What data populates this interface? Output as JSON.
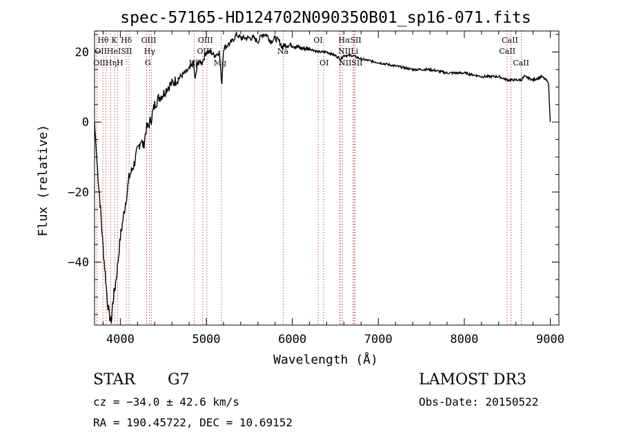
{
  "chart_data": {
    "type": "line",
    "title": "spec-57165-HD124702N090350B01_sp16-071.fits",
    "xlabel": "Wavelength (Å)",
    "ylabel": "Flux (relative)",
    "xlim": [
      3700,
      9100
    ],
    "ylim": [
      -58,
      26
    ],
    "xticks": [
      4000,
      5000,
      6000,
      7000,
      8000,
      9000
    ],
    "yticks": [
      -40,
      -20,
      0,
      20
    ],
    "ytick_labels": [
      "−40",
      "−20",
      "0",
      "20"
    ],
    "series": [
      {
        "name": "spectrum",
        "x": [
          3700,
          3730,
          3770,
          3800,
          3830,
          3850,
          3870,
          3890,
          3900,
          3910,
          3920,
          3940,
          3960,
          3980,
          4000,
          4030,
          4060,
          4080,
          4100,
          4130,
          4160,
          4200,
          4240,
          4270,
          4300,
          4330,
          4360,
          4400,
          4450,
          4500,
          4550,
          4600,
          4650,
          4700,
          4750,
          4800,
          4850,
          4870,
          4900,
          4950,
          5000,
          5050,
          5100,
          5150,
          5180,
          5200,
          5250,
          5300,
          5350,
          5400,
          5450,
          5500,
          5550,
          5600,
          5650,
          5700,
          5750,
          5800,
          5850,
          5890,
          5900,
          5950,
          6000,
          6100,
          6200,
          6300,
          6400,
          6500,
          6560,
          6600,
          6700,
          6800,
          7000,
          7200,
          7400,
          7600,
          7800,
          8000,
          8200,
          8400,
          8500,
          8540,
          8600,
          8660,
          8700,
          8800,
          8900,
          8950,
          8980,
          8990,
          9000
        ],
        "y": [
          0,
          -12,
          -25,
          -36,
          -45,
          -51,
          -55,
          -57,
          -56,
          -52,
          -50,
          -47,
          -43,
          -38,
          -33,
          -28,
          -23,
          -20,
          -16,
          -14,
          -12,
          -8,
          -5,
          -7,
          -2,
          -1,
          1,
          5,
          7,
          8,
          10,
          11,
          12,
          13,
          14,
          15,
          17,
          12,
          17,
          17,
          20,
          20,
          19,
          20,
          11,
          21,
          22,
          23,
          25,
          24,
          24,
          24,
          24,
          23,
          25,
          25,
          23,
          24,
          23,
          21,
          22,
          22,
          22,
          21,
          21,
          20,
          20,
          19,
          18,
          19,
          19,
          18,
          17,
          16,
          15,
          15,
          14,
          14,
          13,
          13,
          12,
          12,
          12,
          12,
          13,
          12,
          13,
          12,
          11,
          5,
          0
        ]
      }
    ],
    "lines": [
      {
        "name": "Hθ",
        "wavelength": 3797
      },
      {
        "name": "OII",
        "wavelength": 3727
      },
      {
        "name": "Hη",
        "wavelength": 3835
      },
      {
        "name": "HeI",
        "wavelength": 3889
      },
      {
        "name": "K",
        "wavelength": 3934
      },
      {
        "name": "H",
        "wavelength": 3968
      },
      {
        "name": "SII",
        "wavelength": 4070
      },
      {
        "name": "Hδ",
        "wavelength": 4102
      },
      {
        "name": "G",
        "wavelength": 4305
      },
      {
        "name": "Hγ",
        "wavelength": 4340
      },
      {
        "name": "OIII",
        "wavelength": 4363
      },
      {
        "name": "Hβ",
        "wavelength": 4861
      },
      {
        "name": "OIII",
        "wavelength": 4959
      },
      {
        "name": "OIII",
        "wavelength": 5007
      },
      {
        "name": "Mg",
        "wavelength": 5175
      },
      {
        "name": "Na",
        "wavelength": 5893
      },
      {
        "name": "OI",
        "wavelength": 6300
      },
      {
        "name": "OI",
        "wavelength": 6364
      },
      {
        "name": "NII",
        "wavelength": 6548
      },
      {
        "name": "Hα",
        "wavelength": 6563
      },
      {
        "name": "NII",
        "wavelength": 6584
      },
      {
        "name": "SII",
        "wavelength": 6717
      },
      {
        "name": "SII",
        "wavelength": 6731
      },
      {
        "name": "Li",
        "wavelength": 6708
      },
      {
        "name": "CaII",
        "wavelength": 8498
      },
      {
        "name": "CaII",
        "wavelength": 8542
      },
      {
        "name": "CaII",
        "wavelength": 8662
      }
    ],
    "line_labels": [
      {
        "text": "Hθ",
        "wavelength": 3800,
        "row": 0
      },
      {
        "text": "K",
        "wavelength": 3930,
        "row": 0
      },
      {
        "text": "Hδ",
        "wavelength": 4070,
        "row": 0
      },
      {
        "text": "OIII",
        "wavelength": 4330,
        "row": 0
      },
      {
        "text": "OIII",
        "wavelength": 4990,
        "row": 0
      },
      {
        "text": "OI",
        "wavelength": 6300,
        "row": 0
      },
      {
        "text": "HαSII",
        "wavelength": 6670,
        "row": 0
      },
      {
        "text": "CaII",
        "wavelength": 8530,
        "row": 0
      },
      {
        "text": "OIIHeISII",
        "wavelength": 3920,
        "row": 1
      },
      {
        "text": "Hγ",
        "wavelength": 4340,
        "row": 1
      },
      {
        "text": "OIII",
        "wavelength": 4980,
        "row": 1
      },
      {
        "text": "Na",
        "wavelength": 5890,
        "row": 1
      },
      {
        "text": "NIILi",
        "wavelength": 6650,
        "row": 1
      },
      {
        "text": "CaII",
        "wavelength": 8500,
        "row": 1
      },
      {
        "text": "OIIHηH",
        "wavelength": 3860,
        "row": 2
      },
      {
        "text": "G",
        "wavelength": 4320,
        "row": 2
      },
      {
        "text": "Hβ",
        "wavelength": 4860,
        "row": 2
      },
      {
        "text": "Mg",
        "wavelength": 5160,
        "row": 2
      },
      {
        "text": "OI",
        "wavelength": 6370,
        "row": 2
      },
      {
        "text": "NIISII",
        "wavelength": 6680,
        "row": 2
      },
      {
        "text": "CaII",
        "wavelength": 8660,
        "row": 2
      }
    ],
    "colors": {
      "spectrum": "#000000",
      "lines": "#b22222"
    }
  },
  "info": {
    "object_type": "STAR",
    "subclass": "G7",
    "survey": "LAMOST DR3",
    "redshift": "cz = −34.0 ± 42.6 km/s",
    "obs_date": "Obs-Date: 20150522",
    "coords": "RA = 190.45722, DEC =  10.69152"
  }
}
